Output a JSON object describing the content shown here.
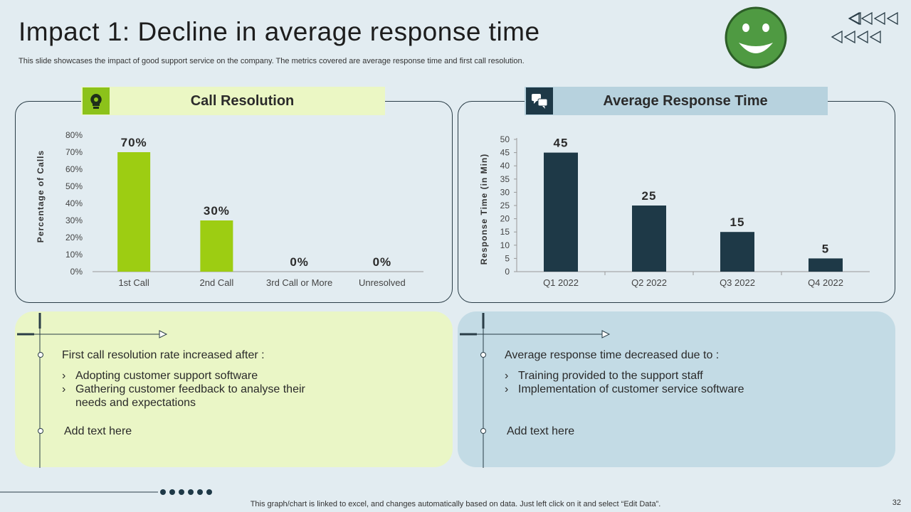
{
  "slide": {
    "title": "Impact 1: Decline in average response time",
    "subtitle": "This slide showcases the impact of good support service on the company. The metrics covered are average response time and first call resolution.",
    "footer": "This graph/chart is linked to excel, and changes automatically based on data. Just left click on it and select “Edit Data”.",
    "page_number": "32"
  },
  "left_panel": {
    "header": "Call Resolution",
    "heading": "First call resolution rate increased after :",
    "bullets": [
      "Adopting customer support software",
      "Gathering customer feedback to analyse their needs and expectations"
    ],
    "add_text": "Add text here"
  },
  "right_panel": {
    "header": "Average Response Time",
    "heading": "Average response time decreased due to :",
    "bullets": [
      "Training provided to the support staff",
      "Implementation  of customer service software"
    ],
    "add_text": "Add text here"
  },
  "colors": {
    "green_bar": "#9dcd12",
    "navy_bar": "#1e3947",
    "left_bg": "#eaf6c6",
    "right_bg": "#c3dbe5",
    "smiley": "#4f9a42"
  },
  "icons": {
    "left_header": "lightbulb-gear-icon",
    "right_header": "chat-bubbles-icon",
    "top_right": "smiley-face-icon",
    "arrows": "triangle-arrows-icon"
  },
  "chart_data": [
    {
      "type": "bar",
      "title": "Call Resolution",
      "categories": [
        "1st Call",
        "2nd Call",
        "3rd Call or More",
        "Unresolved"
      ],
      "values": [
        70,
        30,
        0,
        0
      ],
      "data_labels": [
        "70%",
        "30%",
        "0%",
        "0%"
      ],
      "ylabel": "Percentage of Calls",
      "xlabel": "",
      "ylim": [
        0,
        80
      ],
      "yticks": [
        "0%",
        "10%",
        "20%",
        "30%",
        "40%",
        "50%",
        "60%",
        "70%",
        "80%"
      ],
      "legend": "none",
      "grid": false
    },
    {
      "type": "bar",
      "title": "Average Response Time",
      "categories": [
        "Q1 2022",
        "Q2 2022",
        "Q3 2022",
        "Q4 2022"
      ],
      "values": [
        45,
        25,
        15,
        5
      ],
      "data_labels": [
        "45",
        "25",
        "15",
        "5"
      ],
      "ylabel": "Response Time  (in Min)",
      "xlabel": "",
      "ylim": [
        0,
        50
      ],
      "yticks": [
        "0",
        "5",
        "10",
        "15",
        "20",
        "25",
        "30",
        "35",
        "40",
        "45",
        "50"
      ],
      "legend": "none",
      "grid": false
    }
  ]
}
